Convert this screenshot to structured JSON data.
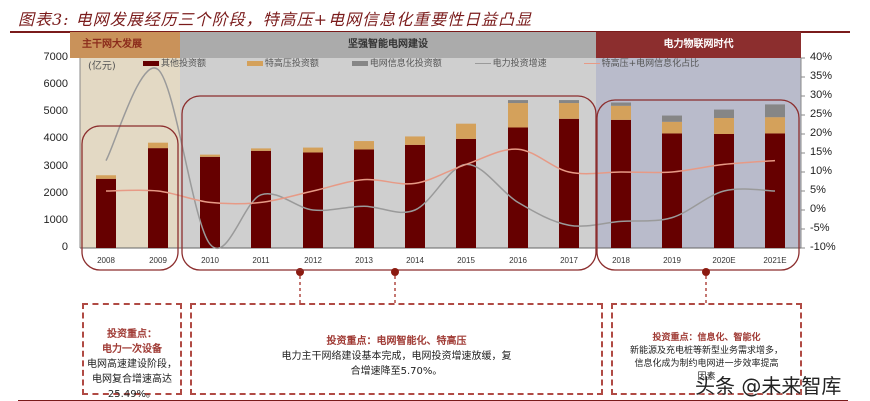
{
  "title": "图表3: 电网发展经历三个阶段，特高压+电网信息化重要性日益凸显",
  "phases": [
    {
      "label": "主干网大发展",
      "color": "#c9925a",
      "text_color": "#8b2b1b",
      "plot_bg": "#e3d9c4"
    },
    {
      "label": "坚强智能电网建设",
      "color": "#ababab",
      "text_color": "#333333",
      "plot_bg": "#cfcfcf"
    },
    {
      "label": "电力物联网时代",
      "color": "#8c2e2e",
      "text_color": "#ffffff",
      "plot_bg": "#b9bbcb"
    }
  ],
  "unit_label": "(亿元)",
  "legend": [
    {
      "label": "其他投资额",
      "type": "bar",
      "color": "#660000"
    },
    {
      "label": "特高压投资额",
      "type": "bar",
      "color": "#d4a15b"
    },
    {
      "label": "电网信息化投资额",
      "type": "bar",
      "color": "#868686"
    },
    {
      "label": "电力投资增速",
      "type": "line",
      "color": "#9a9a9a"
    },
    {
      "label": "特高压+电网信息化占比",
      "type": "line",
      "color": "#e79a86"
    }
  ],
  "y_left_ticks": [
    "7000",
    "6000",
    "5000",
    "4000",
    "3000",
    "2000",
    "1000",
    "0"
  ],
  "y_right_ticks": [
    "40%",
    "35%",
    "30%",
    "25%",
    "20%",
    "15%",
    "10%",
    "5%",
    "0%",
    "-5%",
    "-10%"
  ],
  "chart_data": {
    "type": "bar",
    "title": "电网发展经历三个阶段，特高压+电网信息化重要性日益凸显",
    "xlabel": "",
    "ylabel": "(亿元)",
    "ylim": [
      0,
      7000
    ],
    "y2lim": [
      -0.1,
      0.4
    ],
    "categories": [
      "2008",
      "2009",
      "2010",
      "2011",
      "2012",
      "2013",
      "2014",
      "2015",
      "2016",
      "2017",
      "2018",
      "2019",
      "2020E",
      "2021E"
    ],
    "series": [
      {
        "name": "其他投资额",
        "type": "bar",
        "stack": "inv",
        "axis": "left",
        "values": [
          2550,
          3680,
          3360,
          3580,
          3520,
          3630,
          3800,
          4020,
          4440,
          4760,
          4720,
          4220,
          4200,
          4220
        ]
      },
      {
        "name": "特高压投资额",
        "type": "bar",
        "stack": "inv",
        "axis": "left",
        "values": [
          130,
          200,
          80,
          90,
          180,
          310,
          310,
          560,
          900,
          580,
          520,
          430,
          590,
          600
        ]
      },
      {
        "name": "电网信息化投资额",
        "type": "bar",
        "stack": "inv",
        "axis": "left",
        "values": [
          0,
          0,
          0,
          0,
          0,
          0,
          0,
          0,
          110,
          110,
          120,
          230,
          310,
          470
        ]
      },
      {
        "name": "电力投资增速",
        "type": "line",
        "axis": "right",
        "values": [
          0.13,
          0.37,
          -0.09,
          0.04,
          0.0,
          0.01,
          0.0,
          0.12,
          0.02,
          -0.04,
          -0.03,
          -0.02,
          0.05,
          0.05
        ]
      },
      {
        "name": "特高压+电网信息化占比",
        "type": "line",
        "axis": "right",
        "values": [
          0.05,
          0.05,
          0.02,
          0.02,
          0.05,
          0.08,
          0.07,
          0.12,
          0.16,
          0.1,
          0.1,
          0.1,
          0.12,
          0.13
        ]
      }
    ],
    "legend_position": "top",
    "grid": false
  },
  "notes": [
    {
      "head": "投资重点：\n电力一次设备",
      "body": "电网高速建设阶段，\n电网复合增速高达\n25.49%。"
    },
    {
      "head": "投资重点：电网智能化、特高压",
      "body": "电力主干网络建设基本完成，电网投资增速放缓，复\n合增速降至5.70%。"
    },
    {
      "head": "投资重点：信息化、智能化",
      "body": "新能源及充电桩等新型业务需求增多，\n信息化成为制约电网进一步效率提高\n因素"
    }
  ],
  "watermark": "头条 @未来智库"
}
